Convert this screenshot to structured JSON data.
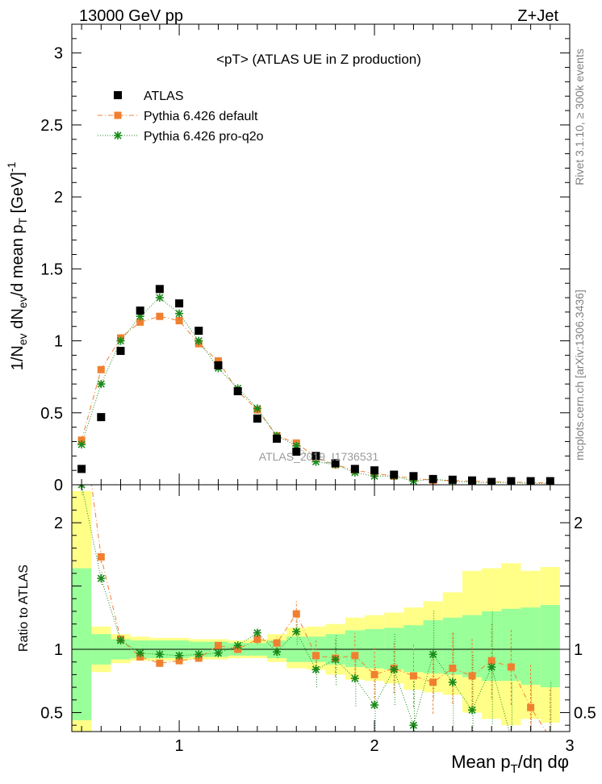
{
  "header": {
    "left": "13000 GeV pp",
    "right": "Z+Jet"
  },
  "plot_title": "<pT> (ATLAS UE in Z production)",
  "legend": [
    {
      "label": "ATLAS",
      "marker": "square",
      "color": "#000000"
    },
    {
      "label": "Pythia 6.426 default",
      "marker": "square-dashdot",
      "color": "#f08030"
    },
    {
      "label": "Pythia 6.426 pro-q2o",
      "marker": "star-dotted",
      "color": "#1a8a1a"
    }
  ],
  "watermark": "ATLAS_2019_I1736531",
  "side_text": {
    "rivet": "Rivet 3.1.10, ≥ 300k events",
    "mcplots": "mcplots.cern.ch [arXiv:1306.3436]"
  },
  "colors": {
    "atlas": "#000000",
    "default": "#f08030",
    "proq2o": "#1a8a1a",
    "band_inner": "#99ff99",
    "band_outer": "#ffff88"
  },
  "chart_data": [
    {
      "type": "scatter",
      "panel": "main",
      "ylabel": "1/N_ev dN_ev/d mean p_T [GeV]^-1",
      "xlim": [
        0.45,
        3.0
      ],
      "ylim": [
        0,
        3.2
      ],
      "yticks": [
        0,
        0.5,
        1,
        1.5,
        2,
        2.5,
        3
      ],
      "ytick_labels": [
        "0",
        "0.5",
        "1",
        "1.5",
        "2",
        "2.5",
        "3"
      ],
      "x": [
        0.5,
        0.6,
        0.7,
        0.8,
        0.9,
        1.0,
        1.1,
        1.2,
        1.3,
        1.4,
        1.5,
        1.6,
        1.7,
        1.8,
        1.9,
        2.0,
        2.1,
        2.2,
        2.3,
        2.4,
        2.5,
        2.6,
        2.7,
        2.8,
        2.9
      ],
      "series": [
        {
          "name": "ATLAS",
          "values": [
            0.11,
            0.47,
            0.93,
            1.21,
            1.36,
            1.26,
            1.07,
            0.83,
            0.65,
            0.46,
            0.32,
            0.23,
            0.2,
            0.15,
            0.11,
            0.1,
            0.07,
            0.06,
            0.04,
            0.035,
            0.03,
            0.02,
            0.025,
            0.025,
            0.025
          ]
        },
        {
          "name": "Pythia 6.426 default",
          "values": [
            0.31,
            0.8,
            1.02,
            1.13,
            1.17,
            1.14,
            0.98,
            0.86,
            0.65,
            0.52,
            0.34,
            0.29,
            0.19,
            0.14,
            0.1,
            0.08,
            0.06,
            0.045,
            0.03,
            0.03,
            0.025,
            0.02,
            0.02,
            0.015,
            0.012
          ]
        },
        {
          "name": "Pythia 6.426 pro-q2o",
          "values": [
            0.28,
            0.7,
            1.0,
            1.17,
            1.3,
            1.19,
            1.0,
            0.81,
            0.67,
            0.53,
            0.34,
            0.27,
            0.16,
            0.14,
            0.085,
            0.06,
            0.06,
            0.025,
            0.04,
            0.025,
            0.015,
            0.015,
            0.015,
            0.01,
            0.01
          ]
        }
      ]
    },
    {
      "type": "line",
      "panel": "ratio",
      "ylabel": "Ratio to ATLAS",
      "xlabel": "Mean p_T/dη dφ",
      "xlim": [
        0.45,
        3.0
      ],
      "ylim": [
        0.35,
        2.3
      ],
      "xticks": [
        1,
        2,
        3
      ],
      "xtick_labels": [
        "1",
        "2",
        "3"
      ],
      "yticks": [
        0.5,
        1,
        2
      ],
      "ytick_labels": [
        "0.5",
        "1",
        "2"
      ],
      "x": [
        0.5,
        0.6,
        0.7,
        0.8,
        0.9,
        1.0,
        1.1,
        1.2,
        1.3,
        1.4,
        1.5,
        1.6,
        1.7,
        1.8,
        1.9,
        2.0,
        2.1,
        2.2,
        2.3,
        2.4,
        2.5,
        2.6,
        2.7,
        2.8,
        2.9
      ],
      "band_inner": {
        "low": [
          0.44,
          0.88,
          0.92,
          0.93,
          0.93,
          0.93,
          0.94,
          0.94,
          0.95,
          0.95,
          0.93,
          0.9,
          0.9,
          0.88,
          0.86,
          0.85,
          0.84,
          0.82,
          0.81,
          0.8,
          0.78,
          0.75,
          0.75,
          0.72,
          0.7
        ],
        "high": [
          1.64,
          1.12,
          1.08,
          1.07,
          1.07,
          1.07,
          1.06,
          1.06,
          1.05,
          1.05,
          1.07,
          1.1,
          1.1,
          1.12,
          1.15,
          1.16,
          1.17,
          1.19,
          1.23,
          1.25,
          1.27,
          1.3,
          1.32,
          1.33,
          1.35
        ]
      },
      "band_outer": {
        "low": [
          0.35,
          0.82,
          0.89,
          0.91,
          0.91,
          0.91,
          0.92,
          0.92,
          0.93,
          0.93,
          0.9,
          0.85,
          0.84,
          0.8,
          0.76,
          0.75,
          0.73,
          0.68,
          0.66,
          0.64,
          0.5,
          0.45,
          0.4,
          0.45,
          0.42
        ],
        "high": [
          2.25,
          1.18,
          1.12,
          1.1,
          1.09,
          1.09,
          1.08,
          1.08,
          1.07,
          1.08,
          1.12,
          1.17,
          1.18,
          1.2,
          1.25,
          1.27,
          1.29,
          1.33,
          1.38,
          1.45,
          1.62,
          1.64,
          1.68,
          1.62,
          1.65
        ]
      },
      "series": [
        {
          "name": "Pythia 6.426 default",
          "values": [
            2.9,
            1.73,
            1.08,
            0.94,
            0.89,
            0.91,
            0.93,
            1.03,
            1.0,
            1.08,
            1.05,
            1.28,
            0.95,
            0.93,
            0.95,
            0.8,
            0.85,
            0.79,
            0.74,
            0.85,
            0.79,
            0.91,
            0.86,
            0.54,
            0.3
          ]
        },
        {
          "name": "Pythia 6.426 pro-q2o",
          "values": [
            2.3,
            1.56,
            1.07,
            0.97,
            0.96,
            0.95,
            0.96,
            0.97,
            1.03,
            1.13,
            0.98,
            1.14,
            0.84,
            0.92,
            0.77,
            0.56,
            0.84,
            0.4,
            0.96,
            0.74,
            0.52,
            0.86,
            0.3,
            0.3,
            0.3
          ]
        }
      ],
      "default_err": [
        0.08,
        0.05,
        0.02,
        0.02,
        0.02,
        0.02,
        0.02,
        0.02,
        0.03,
        0.04,
        0.05,
        0.1,
        0.12,
        0.15,
        0.18,
        0.22,
        0.2,
        0.25,
        0.25,
        0.28,
        0.3,
        0.3,
        0.3,
        0.35,
        0.4
      ],
      "proq2o_err": [
        0.08,
        0.05,
        0.02,
        0.02,
        0.02,
        0.02,
        0.02,
        0.02,
        0.03,
        0.04,
        0.05,
        0.1,
        0.14,
        0.2,
        0.22,
        0.3,
        0.28,
        0.35,
        0.35,
        0.4,
        0.45,
        0.45,
        0.45,
        0.45,
        0.45
      ]
    }
  ]
}
